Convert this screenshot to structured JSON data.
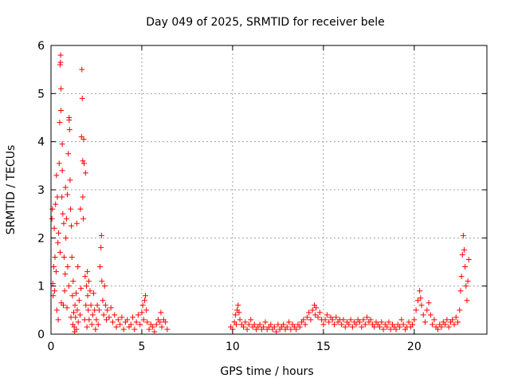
{
  "chart_data": {
    "type": "scatter",
    "title": "Day 049 of 2025, SRMTID for receiver bele",
    "xlabel": "GPS time / hours",
    "ylabel": "SRMTID / TECUs",
    "xlim": [
      0,
      24
    ],
    "ylim": [
      0,
      6
    ],
    "x_ticks": [
      0,
      5,
      10,
      15,
      20
    ],
    "y_ticks": [
      0,
      1,
      2,
      3,
      4,
      5,
      6
    ],
    "grid": true,
    "marker": "+",
    "marker_color": "#ff0000",
    "series": [
      {
        "name": "SRMTID",
        "points": [
          [
            0.05,
            2.4
          ],
          [
            0.08,
            2.6
          ],
          [
            0.1,
            1.05
          ],
          [
            0.12,
            0.8
          ],
          [
            0.15,
            1.4
          ],
          [
            0.18,
            2.2
          ],
          [
            0.2,
            0.9
          ],
          [
            0.22,
            1.6
          ],
          [
            0.25,
            2.7
          ],
          [
            0.28,
            1.3
          ],
          [
            0.3,
            3.3
          ],
          [
            0.32,
            0.5
          ],
          [
            0.35,
            2.85
          ],
          [
            0.38,
            1.9
          ],
          [
            0.4,
            0.3
          ],
          [
            0.42,
            2.1
          ],
          [
            0.45,
            3.55
          ],
          [
            0.48,
            4.4
          ],
          [
            0.5,
            1.7
          ],
          [
            0.5,
            5.6
          ],
          [
            0.52,
            5.65
          ],
          [
            0.53,
            5.8
          ],
          [
            0.55,
            5.1
          ],
          [
            0.55,
            4.65
          ],
          [
            0.57,
            0.65
          ],
          [
            0.6,
            2.85
          ],
          [
            0.62,
            3.95
          ],
          [
            0.62,
            3.4
          ],
          [
            0.65,
            2.5
          ],
          [
            0.68,
            0.6
          ],
          [
            0.7,
            2.3
          ],
          [
            0.72,
            1.6
          ],
          [
            0.75,
            0.9
          ],
          [
            0.78,
            1.25
          ],
          [
            0.8,
            3.05
          ],
          [
            0.82,
            2.0
          ],
          [
            0.85,
            2.4
          ],
          [
            0.88,
            0.55
          ],
          [
            0.9,
            2.9
          ],
          [
            0.92,
            1.4
          ],
          [
            0.95,
            3.75
          ],
          [
            0.98,
            1.0
          ],
          [
            1.0,
            4.45
          ],
          [
            1.0,
            4.5
          ],
          [
            1.02,
            4.25
          ],
          [
            1.05,
            3.2
          ],
          [
            1.08,
            2.6
          ],
          [
            1.1,
            0.35
          ],
          [
            1.12,
            2.25
          ],
          [
            1.15,
            1.6
          ],
          [
            1.18,
            0.8
          ],
          [
            1.2,
            0.2
          ],
          [
            1.22,
            1.1
          ],
          [
            1.25,
            0.45
          ],
          [
            1.28,
            0.15
          ],
          [
            1.3,
            0.05
          ],
          [
            1.32,
            0.6
          ],
          [
            1.35,
            0.35
          ],
          [
            1.38,
            0.85
          ],
          [
            1.4,
            0.1
          ],
          [
            1.42,
            2.3
          ],
          [
            1.45,
            0.5
          ],
          [
            1.48,
            1.4
          ],
          [
            1.5,
            0.25
          ],
          [
            1.55,
            0.7
          ],
          [
            1.6,
            0.4
          ],
          [
            1.62,
            2.6
          ],
          [
            1.65,
            0.95
          ],
          [
            1.68,
            4.1
          ],
          [
            1.7,
            5.5
          ],
          [
            1.72,
            4.9
          ],
          [
            1.75,
            3.6
          ],
          [
            1.75,
            2.85
          ],
          [
            1.78,
            2.4
          ],
          [
            1.8,
            4.05
          ],
          [
            1.82,
            3.55
          ],
          [
            1.85,
            0.3
          ],
          [
            1.88,
            1.2
          ],
          [
            1.9,
            3.35
          ],
          [
            1.92,
            0.6
          ],
          [
            1.95,
            1.0
          ],
          [
            1.98,
            0.15
          ],
          [
            2.0,
            1.3
          ],
          [
            2.02,
            0.8
          ],
          [
            2.05,
            0.5
          ],
          [
            2.08,
            1.1
          ],
          [
            2.1,
            0.3
          ],
          [
            2.15,
            0.9
          ],
          [
            2.2,
            0.6
          ],
          [
            2.25,
            0.2
          ],
          [
            2.3,
            0.4
          ],
          [
            2.35,
            0.85
          ],
          [
            2.4,
            0.5
          ],
          [
            2.45,
            0.1
          ],
          [
            2.5,
            0.3
          ],
          [
            2.55,
            0.6
          ],
          [
            2.6,
            0.2
          ],
          [
            2.65,
            0.5
          ],
          [
            2.7,
            1.4
          ],
          [
            2.75,
            1.8
          ],
          [
            2.78,
            2.05
          ],
          [
            2.8,
            1.1
          ],
          [
            2.85,
            0.7
          ],
          [
            2.9,
            0.4
          ],
          [
            2.95,
            1.0
          ],
          [
            3.0,
            0.6
          ],
          [
            3.05,
            0.3
          ],
          [
            3.1,
            0.5
          ],
          [
            3.2,
            0.35
          ],
          [
            3.3,
            0.55
          ],
          [
            3.4,
            0.25
          ],
          [
            3.5,
            0.4
          ],
          [
            3.6,
            0.15
          ],
          [
            3.7,
            0.3
          ],
          [
            3.8,
            0.2
          ],
          [
            3.9,
            0.35
          ],
          [
            4.0,
            0.1
          ],
          [
            4.1,
            0.25
          ],
          [
            4.2,
            0.3
          ],
          [
            4.3,
            0.15
          ],
          [
            4.4,
            0.2
          ],
          [
            4.5,
            0.35
          ],
          [
            4.6,
            0.1
          ],
          [
            4.7,
            0.25
          ],
          [
            4.8,
            0.4
          ],
          [
            4.9,
            0.2
          ],
          [
            5.0,
            0.45
          ],
          [
            5.05,
            0.6
          ],
          [
            5.1,
            0.3
          ],
          [
            5.15,
            0.7
          ],
          [
            5.2,
            0.8
          ],
          [
            5.25,
            0.5
          ],
          [
            5.3,
            0.25
          ],
          [
            5.4,
            0.1
          ],
          [
            5.5,
            0.2
          ],
          [
            5.6,
            0.15
          ],
          [
            5.7,
            0.05
          ],
          [
            5.8,
            0.2
          ],
          [
            5.9,
            0.3
          ],
          [
            6.0,
            0.25
          ],
          [
            6.05,
            0.45
          ],
          [
            6.1,
            0.15
          ],
          [
            6.2,
            0.3
          ],
          [
            6.3,
            0.25
          ],
          [
            6.4,
            0.1
          ],
          [
            9.9,
            0.15
          ],
          [
            10.0,
            0.1
          ],
          [
            10.1,
            0.25
          ],
          [
            10.15,
            0.4
          ],
          [
            10.2,
            0.2
          ],
          [
            10.25,
            0.5
          ],
          [
            10.3,
            0.6
          ],
          [
            10.35,
            0.45
          ],
          [
            10.4,
            0.3
          ],
          [
            10.5,
            0.2
          ],
          [
            10.6,
            0.15
          ],
          [
            10.7,
            0.25
          ],
          [
            10.8,
            0.1
          ],
          [
            10.9,
            0.2
          ],
          [
            11.0,
            0.3
          ],
          [
            11.1,
            0.15
          ],
          [
            11.2,
            0.2
          ],
          [
            11.3,
            0.1
          ],
          [
            11.4,
            0.15
          ],
          [
            11.5,
            0.2
          ],
          [
            11.6,
            0.1
          ],
          [
            11.7,
            0.15
          ],
          [
            11.8,
            0.25
          ],
          [
            11.9,
            0.1
          ],
          [
            12.0,
            0.15
          ],
          [
            12.1,
            0.2
          ],
          [
            12.2,
            0.1
          ],
          [
            12.3,
            0.15
          ],
          [
            12.4,
            0.05
          ],
          [
            12.5,
            0.2
          ],
          [
            12.6,
            0.1
          ],
          [
            12.7,
            0.15
          ],
          [
            12.8,
            0.2
          ],
          [
            12.9,
            0.1
          ],
          [
            13.0,
            0.15
          ],
          [
            13.1,
            0.25
          ],
          [
            13.2,
            0.1
          ],
          [
            13.3,
            0.2
          ],
          [
            13.4,
            0.15
          ],
          [
            13.5,
            0.1
          ],
          [
            13.6,
            0.2
          ],
          [
            13.7,
            0.15
          ],
          [
            13.8,
            0.25
          ],
          [
            13.9,
            0.3
          ],
          [
            14.0,
            0.2
          ],
          [
            14.1,
            0.35
          ],
          [
            14.2,
            0.45
          ],
          [
            14.3,
            0.3
          ],
          [
            14.4,
            0.5
          ],
          [
            14.5,
            0.6
          ],
          [
            14.55,
            0.4
          ],
          [
            14.6,
            0.55
          ],
          [
            14.7,
            0.35
          ],
          [
            14.8,
            0.45
          ],
          [
            14.9,
            0.3
          ],
          [
            15.0,
            0.2
          ],
          [
            15.1,
            0.3
          ],
          [
            15.2,
            0.4
          ],
          [
            15.3,
            0.25
          ],
          [
            15.4,
            0.35
          ],
          [
            15.5,
            0.3
          ],
          [
            15.6,
            0.2
          ],
          [
            15.7,
            0.35
          ],
          [
            15.8,
            0.25
          ],
          [
            15.9,
            0.3
          ],
          [
            16.0,
            0.2
          ],
          [
            16.1,
            0.3
          ],
          [
            16.2,
            0.15
          ],
          [
            16.3,
            0.25
          ],
          [
            16.4,
            0.2
          ],
          [
            16.5,
            0.3
          ],
          [
            16.6,
            0.15
          ],
          [
            16.7,
            0.25
          ],
          [
            16.8,
            0.2
          ],
          [
            16.9,
            0.3
          ],
          [
            17.0,
            0.25
          ],
          [
            17.1,
            0.15
          ],
          [
            17.2,
            0.3
          ],
          [
            17.3,
            0.2
          ],
          [
            17.4,
            0.35
          ],
          [
            17.5,
            0.25
          ],
          [
            17.6,
            0.3
          ],
          [
            17.7,
            0.2
          ],
          [
            17.8,
            0.15
          ],
          [
            17.9,
            0.25
          ],
          [
            18.0,
            0.2
          ],
          [
            18.1,
            0.15
          ],
          [
            18.2,
            0.25
          ],
          [
            18.3,
            0.1
          ],
          [
            18.4,
            0.2
          ],
          [
            18.5,
            0.15
          ],
          [
            18.6,
            0.25
          ],
          [
            18.7,
            0.1
          ],
          [
            18.8,
            0.2
          ],
          [
            18.9,
            0.15
          ],
          [
            19.0,
            0.1
          ],
          [
            19.1,
            0.2
          ],
          [
            19.2,
            0.15
          ],
          [
            19.3,
            0.3
          ],
          [
            19.4,
            0.2
          ],
          [
            19.5,
            0.1
          ],
          [
            19.6,
            0.15
          ],
          [
            19.7,
            0.25
          ],
          [
            19.8,
            0.15
          ],
          [
            19.9,
            0.2
          ],
          [
            20.0,
            0.3
          ],
          [
            20.1,
            0.5
          ],
          [
            20.2,
            0.7
          ],
          [
            20.3,
            0.9
          ],
          [
            20.35,
            0.75
          ],
          [
            20.4,
            0.6
          ],
          [
            20.5,
            0.4
          ],
          [
            20.6,
            0.25
          ],
          [
            20.7,
            0.5
          ],
          [
            20.8,
            0.65
          ],
          [
            20.9,
            0.4
          ],
          [
            21.0,
            0.2
          ],
          [
            21.1,
            0.3
          ],
          [
            21.2,
            0.15
          ],
          [
            21.3,
            0.1
          ],
          [
            21.4,
            0.2
          ],
          [
            21.5,
            0.15
          ],
          [
            21.6,
            0.25
          ],
          [
            21.7,
            0.2
          ],
          [
            21.8,
            0.3
          ],
          [
            21.9,
            0.15
          ],
          [
            22.0,
            0.25
          ],
          [
            22.1,
            0.3
          ],
          [
            22.2,
            0.2
          ],
          [
            22.3,
            0.35
          ],
          [
            22.4,
            0.25
          ],
          [
            22.5,
            0.5
          ],
          [
            22.55,
            0.9
          ],
          [
            22.6,
            1.2
          ],
          [
            22.65,
            1.65
          ],
          [
            22.7,
            2.05
          ],
          [
            22.75,
            1.75
          ],
          [
            22.8,
            1.4
          ],
          [
            22.85,
            1.0
          ],
          [
            22.9,
            0.7
          ],
          [
            22.95,
            1.1
          ],
          [
            23.0,
            1.55
          ]
        ]
      }
    ]
  }
}
